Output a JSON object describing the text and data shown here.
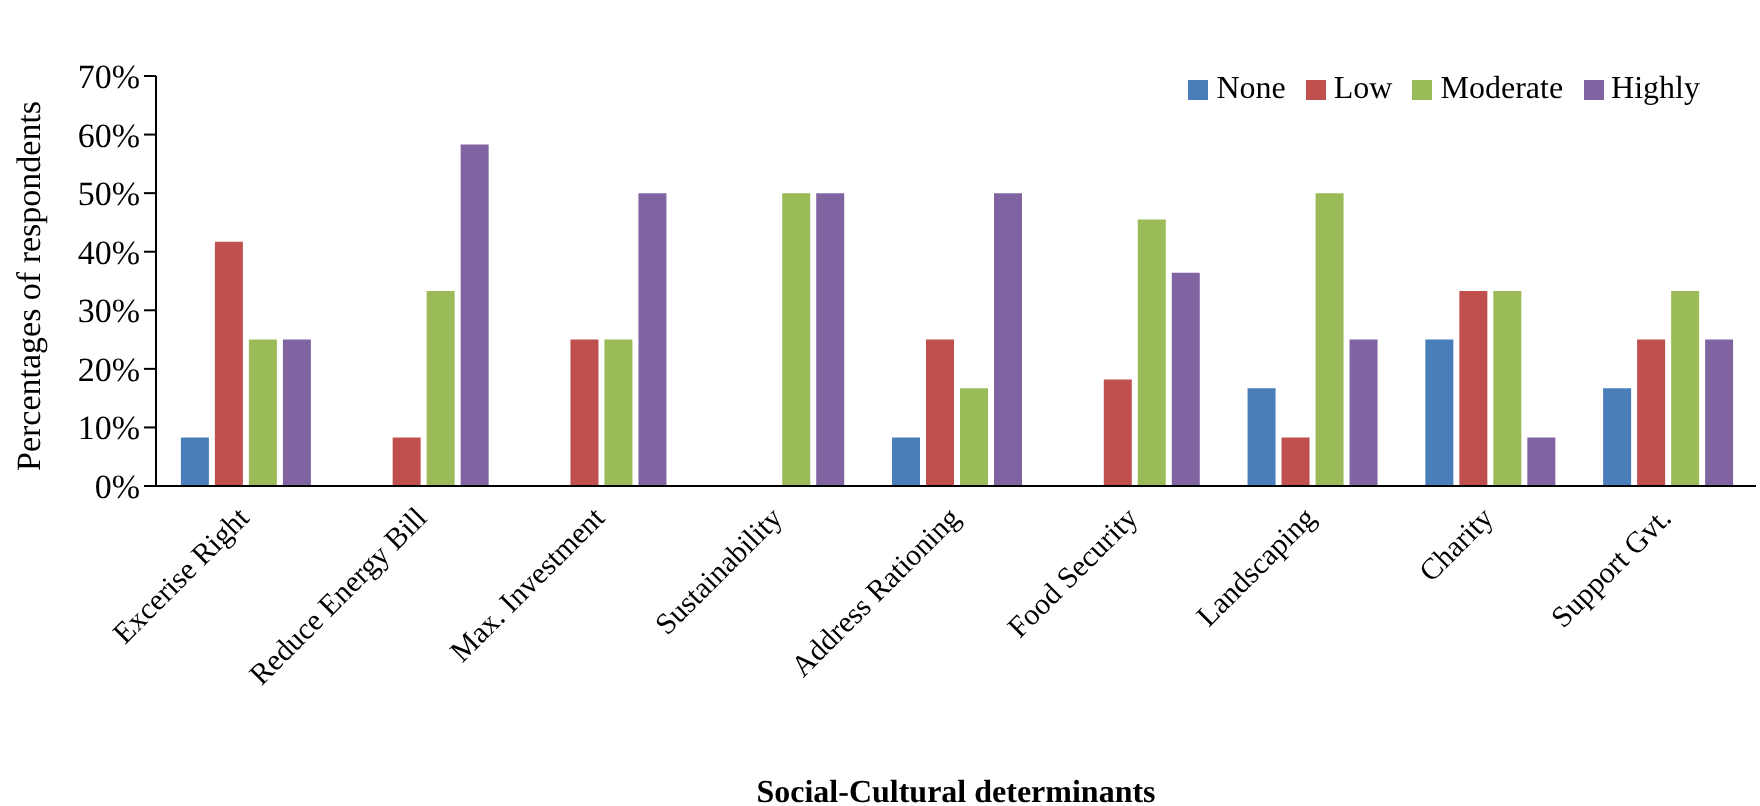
{
  "chart_data": {
    "type": "bar",
    "xlabel": "Social-Cultural determinants",
    "ylabel": "Percentages of respondents",
    "categories": [
      "Excerise Right",
      "Reduce Energy Bill",
      "Max. Investment",
      "Sustainability",
      "Address Rationing",
      "Food Security",
      "Landscaping",
      "Charity",
      "Support Gvt."
    ],
    "series": [
      {
        "name": "None",
        "color": "#4a7ebb",
        "values": [
          8.3,
          0,
          0,
          0,
          8.3,
          0,
          16.7,
          25,
          16.7
        ]
      },
      {
        "name": "Low",
        "color": "#c0504d",
        "values": [
          41.7,
          8.3,
          25,
          0,
          25,
          18.2,
          8.3,
          33.3,
          25
        ]
      },
      {
        "name": "Moderate",
        "color": "#9bbb59",
        "values": [
          25,
          33.3,
          25,
          50,
          16.7,
          45.5,
          50,
          33.3,
          33.3
        ]
      },
      {
        "name": "Highly",
        "color": "#8064a2",
        "values": [
          25,
          58.3,
          50,
          50,
          50,
          36.4,
          25,
          8.3,
          25
        ]
      }
    ],
    "ylim": [
      0,
      70
    ],
    "yticks": [
      {
        "value": 0,
        "label": "0%"
      },
      {
        "value": 10,
        "label": "10%"
      },
      {
        "value": 20,
        "label": "20%"
      },
      {
        "value": 30,
        "label": "30%"
      },
      {
        "value": 40,
        "label": "40%"
      },
      {
        "value": 50,
        "label": "50%"
      },
      {
        "value": 60,
        "label": "60%"
      },
      {
        "value": 70,
        "label": "70%"
      }
    ],
    "grid": false,
    "legend": "top right"
  }
}
